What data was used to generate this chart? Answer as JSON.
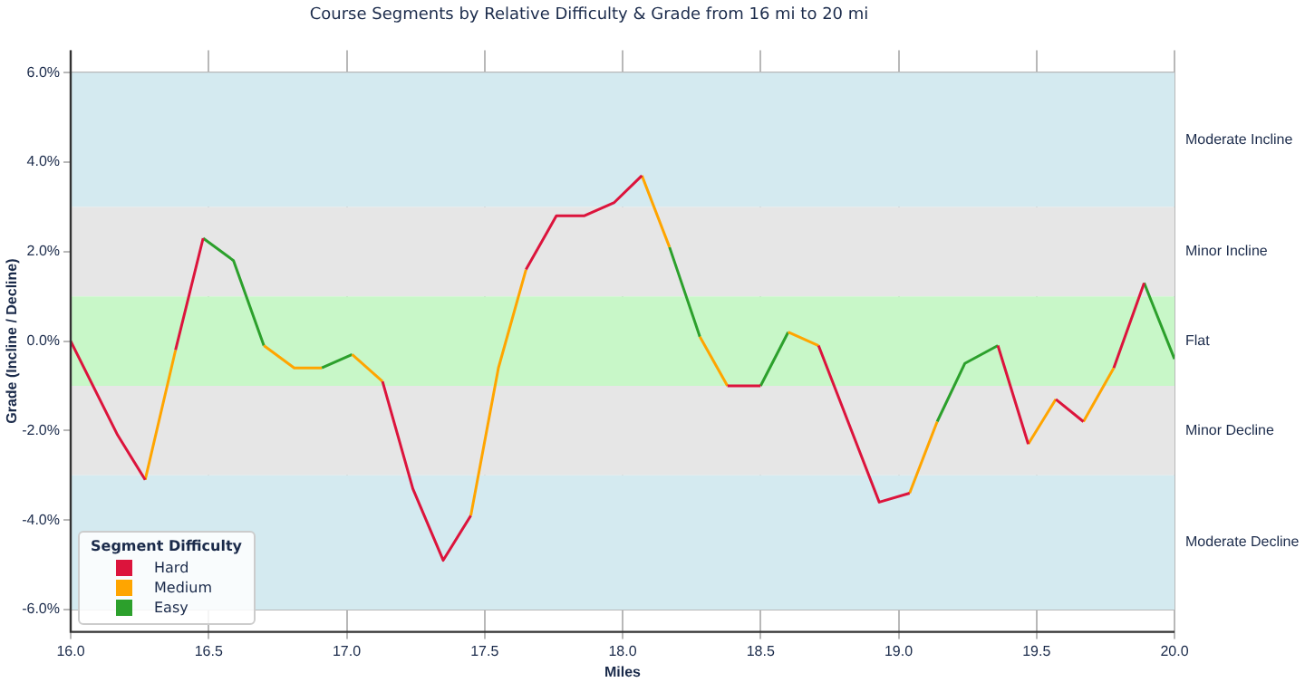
{
  "chart_data": {
    "type": "line",
    "title": "Course Segments by Relative Difficulty & Grade from 16 mi to 20 mi",
    "xlabel": "Miles",
    "ylabel": "Grade (Incline / Decline)",
    "legend_title": "Segment Difficulty",
    "xlim": [
      16.0,
      20.0
    ],
    "xticks": [
      {
        "value": 16,
        "label": "16.0"
      },
      {
        "value": 16.5,
        "label": "16.5"
      },
      {
        "value": 17,
        "label": "17.0"
      },
      {
        "value": 17.5,
        "label": "17.5"
      },
      {
        "value": 18,
        "label": "18.0"
      },
      {
        "value": 18.5,
        "label": "18.5"
      },
      {
        "value": 19,
        "label": "19.0"
      },
      {
        "value": 19.5,
        "label": "19.5"
      },
      {
        "value": 20,
        "label": "20.0"
      }
    ],
    "ylim": [
      -6.5,
      6.5
    ],
    "yticks": [
      {
        "value": -6,
        "label": "-6.0%"
      },
      {
        "value": -4,
        "label": "-4.0%"
      },
      {
        "value": -2,
        "label": "-2.0%"
      },
      {
        "value": 0,
        "label": "0.0%"
      },
      {
        "value": 2,
        "label": "2.0%"
      },
      {
        "value": 4,
        "label": "4.0%"
      },
      {
        "value": 6,
        "label": "6.0%"
      }
    ],
    "grid": true,
    "legend": "bottom left",
    "marker": "none",
    "line_style": "solid",
    "bands": [
      {
        "axis": "y",
        "from": 3,
        "to": 6,
        "label": "Moderate Incline",
        "color": "#d4eaf0"
      },
      {
        "axis": "y",
        "from": 1,
        "to": 3,
        "label": "Minor Incline",
        "color": "#e6e6e6"
      },
      {
        "axis": "y",
        "from": -1,
        "to": 1,
        "label": "Flat",
        "color": "#c8f7c8"
      },
      {
        "axis": "y",
        "from": -3,
        "to": -1,
        "label": "Minor Decline",
        "color": "#e6e6e6"
      },
      {
        "axis": "y",
        "from": -6,
        "to": -3,
        "label": "Moderate Decline",
        "color": "#d4eaf0"
      }
    ],
    "series": [
      {
        "name": "Hard",
        "color": "#dc143c",
        "x": [
          16.0,
          16.17,
          16.27,
          null,
          16.38,
          16.48,
          null,
          17.13,
          17.24,
          17.35,
          17.45,
          null,
          17.65,
          17.76,
          17.86,
          17.97,
          18.07,
          null,
          18.38,
          18.5,
          null,
          18.71,
          18.93,
          19.04,
          null,
          19.36,
          19.47,
          null,
          19.57,
          19.67,
          null,
          19.78,
          19.89
        ],
        "values": [
          0.0,
          -2.1,
          -3.1,
          null,
          -0.2,
          2.3,
          null,
          -0.9,
          -3.3,
          -4.9,
          -3.9,
          null,
          1.6,
          2.8,
          2.8,
          3.1,
          3.7,
          null,
          -1.0,
          -1.0,
          null,
          -0.1,
          -3.6,
          -3.4,
          null,
          -0.1,
          -2.3,
          null,
          -1.3,
          -1.8,
          null,
          -0.6,
          1.3
        ]
      },
      {
        "name": "Medium",
        "color": "#ffa500",
        "x": [
          16.27,
          16.38,
          null,
          16.7,
          16.81,
          16.91,
          null,
          17.02,
          17.13,
          null,
          17.45,
          17.55,
          17.65,
          null,
          18.07,
          18.17,
          null,
          18.28,
          18.38,
          null,
          18.6,
          18.71,
          null,
          19.04,
          19.14,
          null,
          19.47,
          19.57,
          null,
          19.67,
          19.78
        ],
        "values": [
          -3.1,
          -0.2,
          null,
          -0.1,
          -0.6,
          -0.6,
          null,
          -0.3,
          -0.9,
          null,
          -3.9,
          -0.6,
          1.6,
          null,
          3.7,
          2.1,
          null,
          0.1,
          -1.0,
          null,
          0.2,
          -0.1,
          null,
          -3.4,
          -1.8,
          null,
          -2.3,
          -1.3,
          null,
          -1.8,
          -0.6
        ]
      },
      {
        "name": "Easy",
        "color": "#2ca02c",
        "x": [
          16.48,
          16.59,
          16.7,
          null,
          16.91,
          17.02,
          null,
          18.17,
          18.28,
          null,
          18.5,
          18.6,
          null,
          19.14,
          19.24,
          19.36,
          null,
          19.89,
          20.0
        ],
        "values": [
          2.3,
          1.8,
          -0.1,
          null,
          -0.6,
          -0.3,
          null,
          2.1,
          0.1,
          null,
          -1.0,
          0.2,
          null,
          -1.8,
          -0.5,
          -0.1,
          null,
          1.3,
          -0.4
        ]
      }
    ]
  }
}
